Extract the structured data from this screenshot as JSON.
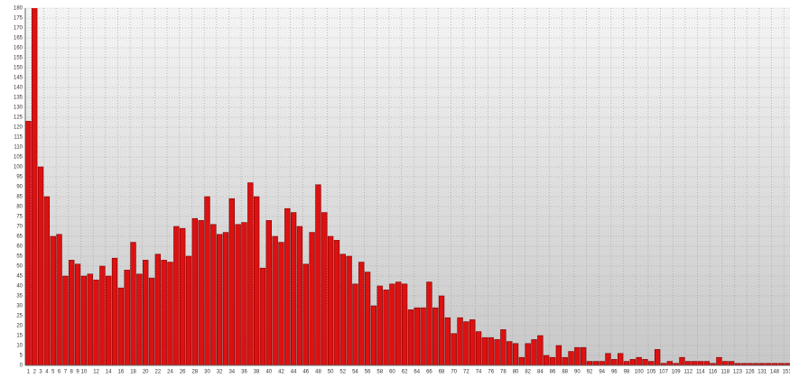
{
  "chart_data": {
    "type": "bar",
    "categories": [
      1,
      2,
      3,
      4,
      5,
      6,
      7,
      8,
      9,
      10,
      null,
      12,
      null,
      14,
      null,
      16,
      null,
      18,
      null,
      20,
      null,
      22,
      null,
      24,
      null,
      26,
      null,
      28,
      null,
      30,
      null,
      32,
      null,
      34,
      null,
      36,
      null,
      38,
      null,
      40,
      null,
      42,
      null,
      44,
      null,
      46,
      null,
      48,
      null,
      50,
      null,
      52,
      null,
      54,
      null,
      56,
      null,
      58,
      null,
      60,
      null,
      62,
      null,
      64,
      null,
      66,
      null,
      68,
      null,
      70,
      null,
      72,
      null,
      74,
      null,
      76,
      null,
      78,
      null,
      80,
      null,
      82,
      null,
      84,
      null,
      86,
      null,
      88,
      null,
      90,
      null,
      92,
      null,
      94,
      null,
      96,
      null,
      98,
      null,
      100,
      null,
      105,
      null,
      107,
      null,
      109,
      null,
      112,
      null,
      114,
      null,
      116,
      null,
      118,
      null,
      123,
      null,
      126,
      null,
      131,
      null,
      148,
      null,
      151
    ],
    "values": [
      123,
      181,
      100,
      85,
      65,
      66,
      45,
      53,
      51,
      45,
      46,
      43,
      50,
      45,
      54,
      39,
      48,
      62,
      46,
      53,
      44,
      56,
      53,
      52,
      70,
      69,
      55,
      74,
      73,
      85,
      71,
      66,
      67,
      84,
      71,
      72,
      92,
      85,
      49,
      73,
      65,
      62,
      79,
      77,
      70,
      51,
      67,
      91,
      77,
      65,
      63,
      56,
      55,
      41,
      52,
      47,
      30,
      40,
      38,
      41,
      42,
      41,
      28,
      29,
      29,
      42,
      29,
      35,
      24,
      16,
      24,
      22,
      23,
      17,
      14,
      14,
      13,
      18,
      12,
      11,
      4,
      11,
      13,
      15,
      5,
      4,
      10,
      4,
      7,
      9,
      9,
      2,
      2,
      2,
      6,
      3,
      6,
      2,
      3,
      4,
      3,
      2,
      8,
      1,
      2,
      1,
      4,
      2,
      2,
      2,
      2,
      1,
      4,
      2,
      2,
      1,
      1,
      1,
      1,
      1,
      1,
      1,
      1,
      1
    ],
    "color": "#dd1111",
    "ylim": [
      0,
      180
    ],
    "yticks": [
      0,
      5,
      10,
      15,
      20,
      25,
      30,
      35,
      40,
      45,
      50,
      55,
      60,
      65,
      70,
      75,
      80,
      85,
      90,
      95,
      100,
      105,
      110,
      115,
      120,
      125,
      130,
      135,
      140,
      145,
      150,
      155,
      160,
      165,
      170,
      175,
      180
    ],
    "grid": true
  }
}
